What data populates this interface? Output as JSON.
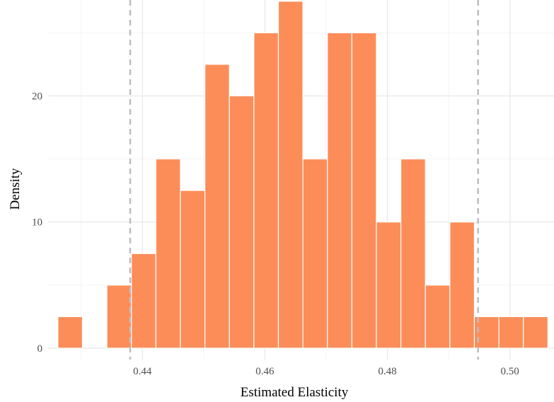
{
  "chart_data": {
    "type": "histogram",
    "xlabel": "Estimated Elasticity",
    "ylabel": "Density",
    "xlim": [
      0.4246,
      0.5072
    ],
    "ylim": [
      -0.9,
      27.6
    ],
    "x_ticks": [
      0.44,
      0.46,
      0.48,
      0.5
    ],
    "x_tick_labels": [
      "0.44",
      "0.46",
      "0.48",
      "0.50"
    ],
    "y_ticks": [
      0,
      10,
      20
    ],
    "y_tick_labels": [
      "0",
      "10",
      "20"
    ],
    "y_minor_gridlines": [
      5,
      15,
      25
    ],
    "x_minor_gridlines": [
      0.43,
      0.45,
      0.47,
      0.49
    ],
    "grid": true,
    "bin_width": 0.004,
    "bins": [
      {
        "x0": 0.4262,
        "x1": 0.4302,
        "density": 2.5
      },
      {
        "x0": 0.4302,
        "x1": 0.4342,
        "density": 0
      },
      {
        "x0": 0.4342,
        "x1": 0.4382,
        "density": 5
      },
      {
        "x0": 0.4382,
        "x1": 0.4422,
        "density": 7.5
      },
      {
        "x0": 0.4422,
        "x1": 0.4462,
        "density": 15
      },
      {
        "x0": 0.4462,
        "x1": 0.4502,
        "density": 12.5
      },
      {
        "x0": 0.4502,
        "x1": 0.4542,
        "density": 22.5
      },
      {
        "x0": 0.4542,
        "x1": 0.4582,
        "density": 20
      },
      {
        "x0": 0.4582,
        "x1": 0.4622,
        "density": 25
      },
      {
        "x0": 0.4622,
        "x1": 0.4662,
        "density": 27.5
      },
      {
        "x0": 0.4662,
        "x1": 0.4702,
        "density": 15
      },
      {
        "x0": 0.4702,
        "x1": 0.4742,
        "density": 25
      },
      {
        "x0": 0.4742,
        "x1": 0.4782,
        "density": 25
      },
      {
        "x0": 0.4782,
        "x1": 0.4822,
        "density": 10
      },
      {
        "x0": 0.4822,
        "x1": 0.4862,
        "density": 15
      },
      {
        "x0": 0.4862,
        "x1": 0.4902,
        "density": 5
      },
      {
        "x0": 0.4902,
        "x1": 0.4942,
        "density": 10
      },
      {
        "x0": 0.4942,
        "x1": 0.4982,
        "density": 2.5
      },
      {
        "x0": 0.4982,
        "x1": 0.5022,
        "density": 2.5
      },
      {
        "x0": 0.5022,
        "x1": 0.5062,
        "density": 2.5
      }
    ],
    "reference_lines": [
      {
        "x": 0.438,
        "style": "dashed"
      },
      {
        "x": 0.4948,
        "style": "dashed"
      }
    ],
    "colors": {
      "bar_fill": "#fc8d59",
      "bar_border": "#ffffff",
      "reference_line": "#bdbdbd",
      "grid_major": "#ebebeb",
      "grid_minor": "#f4f4f4"
    }
  }
}
